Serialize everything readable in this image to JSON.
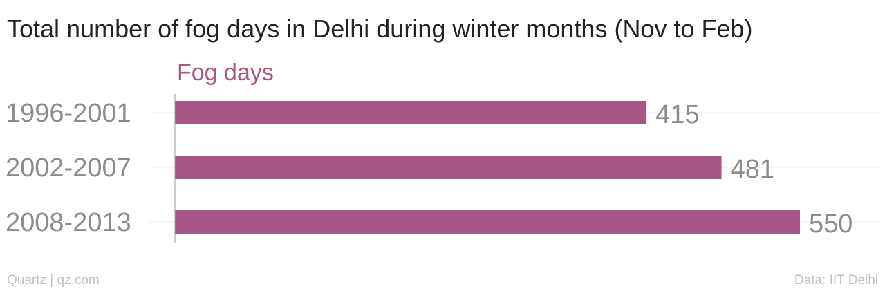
{
  "chart_data": {
    "type": "bar",
    "orientation": "horizontal",
    "title": "Total number of fog days in Delhi during winter months (Nov to Feb)",
    "categories": [
      "1996-2001",
      "2002-2007",
      "2008-2013"
    ],
    "series": [
      {
        "name": "Fog days",
        "values": [
          415,
          481,
          550
        ]
      }
    ],
    "xlim": [
      0,
      550
    ],
    "grid": true
  },
  "footer": {
    "credit": "Quartz | qz.com",
    "source": "Data: IIT Delhi"
  },
  "colors": {
    "bar": "#a85686",
    "series_label": "#a85686"
  }
}
